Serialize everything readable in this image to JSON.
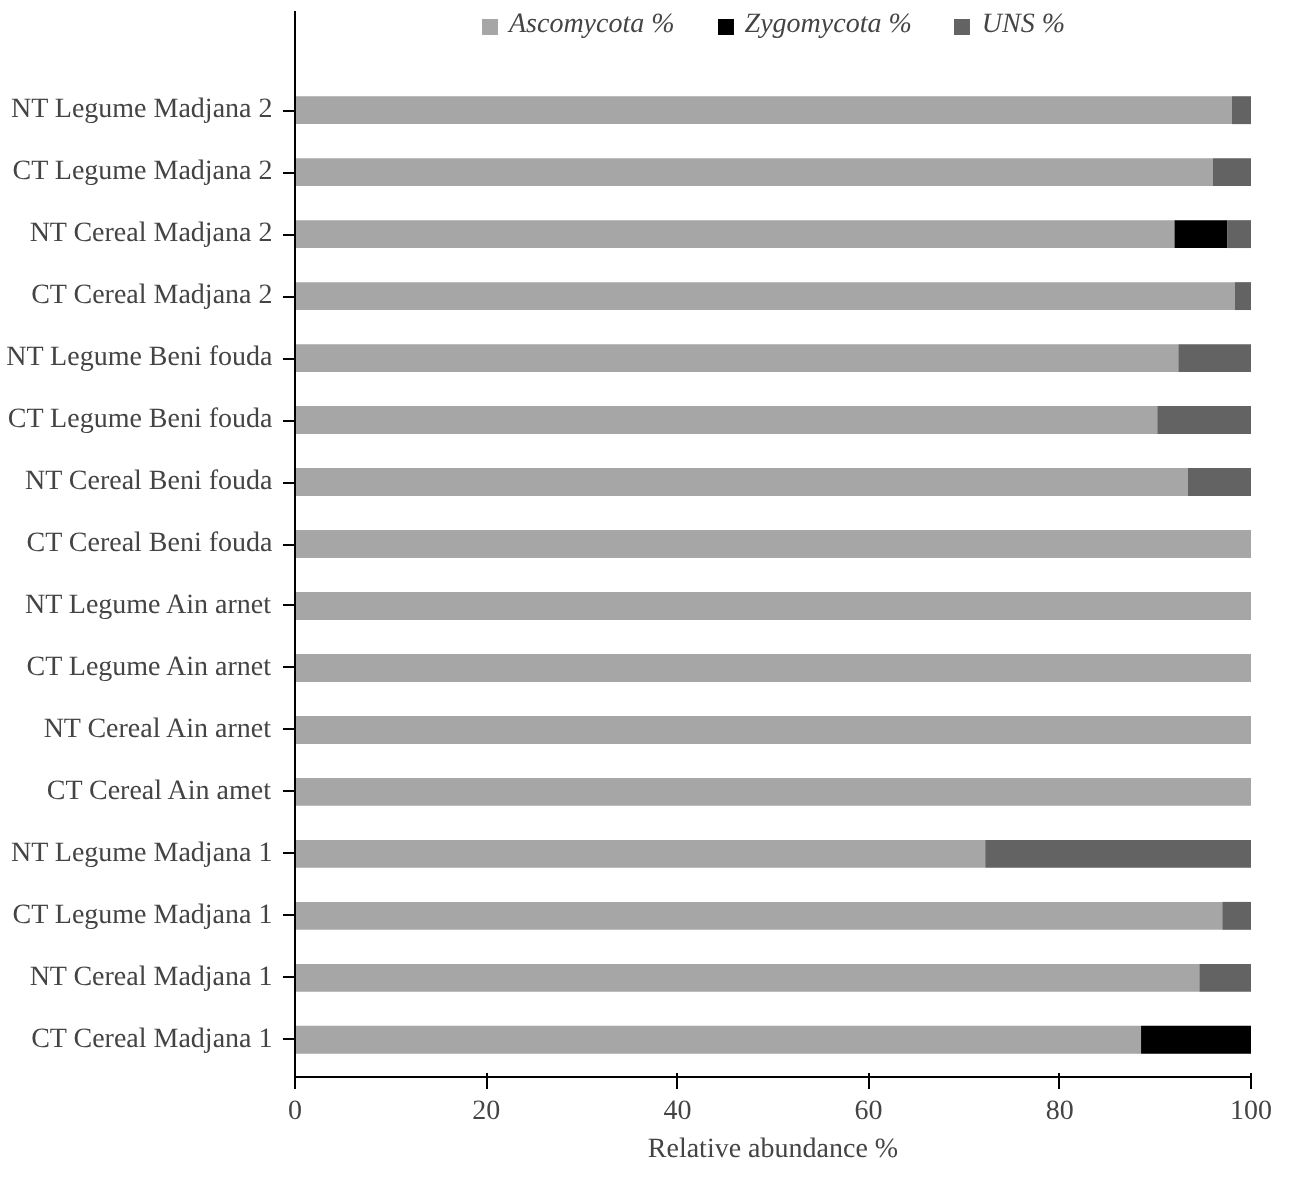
{
  "chart_data": {
    "type": "bar",
    "orientation": "horizontal",
    "stacked": true,
    "xlabel": "Relative abundance %",
    "categories": [
      "NT Legume Madjana 2",
      "CT Legume Madjana 2",
      "NT Cereal Madjana 2",
      "CT Cereal Madjana 2",
      "NT Legume Beni fouda",
      "CT Legume Beni fouda",
      "NT Cereal Beni fouda",
      "CT Cereal Beni fouda",
      "NT Legume Ain arnet",
      "CT Legume Ain arnet",
      "NT Cereal Ain arnet",
      "CT Cereal Ain amet",
      "NT Legume Madjana 1",
      "CT Legume Madjana 1",
      "NT Cereal Madjana 1",
      "CT Cereal Madjana 1"
    ],
    "series": [
      {
        "name": "Ascomycota %",
        "color": "#a6a6a6",
        "values": [
          98,
          96,
          92,
          98.3,
          92.4,
          90.2,
          93.4,
          100,
          100,
          100,
          100,
          100,
          72.2,
          97,
          94.6,
          88.5
        ]
      },
      {
        "name": "Zygomycota %",
        "color": "#000000",
        "values": [
          0,
          0,
          5.5,
          0,
          0,
          0,
          0,
          0,
          0,
          0,
          0,
          0,
          0,
          0,
          0,
          11.5
        ]
      },
      {
        "name": "UNS %",
        "color": "#636363",
        "values": [
          2,
          4,
          2.5,
          1.7,
          7.6,
          9.8,
          6.6,
          0,
          0,
          0,
          0,
          0,
          27.8,
          3,
          5.4,
          0
        ]
      }
    ],
    "xlim": [
      0,
      100
    ],
    "xticks": [
      0,
      20,
      40,
      60,
      80,
      100
    ],
    "grid": false,
    "legend": "top"
  }
}
